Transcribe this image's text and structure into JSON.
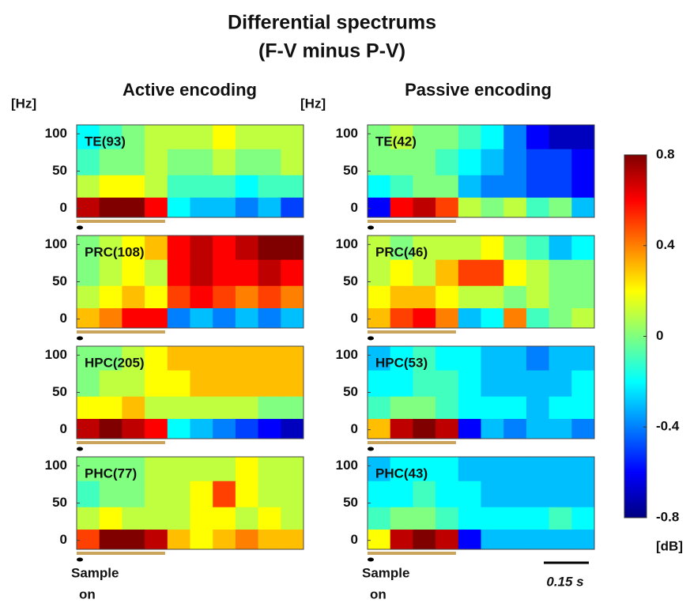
{
  "title": [
    "Differential spectrums",
    "(F-V minus P-V)"
  ],
  "columns": [
    "Active encoding",
    "Passive encoding"
  ],
  "y_unit": "[Hz]",
  "x_label": [
    "Sample",
    "on"
  ],
  "scale_bar": "0.15 s",
  "colorbar": {
    "colormap": "jet",
    "lim": [
      -0.8,
      0.8
    ],
    "ticks": [
      -0.8,
      -0.4,
      0,
      0.4,
      0.8
    ],
    "label": "[dB]"
  },
  "chart_data": [
    {
      "type": "heatmap",
      "title": "TE(93)",
      "ylim": [
        -12,
        112
      ],
      "yticks": [
        0,
        50,
        100
      ],
      "ybins": [
        -12,
        15,
        45,
        80,
        112
      ],
      "values": [
        [
          0.7,
          0.8,
          0.8,
          0.6,
          -0.2,
          -0.3,
          -0.3,
          -0.4,
          -0.3,
          -0.5
        ],
        [
          0.1,
          0.2,
          0.2,
          0.1,
          -0.1,
          -0.1,
          -0.1,
          -0.2,
          -0.1,
          -0.1
        ],
        [
          -0.1,
          0,
          0,
          0.1,
          0,
          0,
          0.1,
          0,
          0,
          0.1
        ],
        [
          -0.2,
          -0.1,
          0,
          0.1,
          0.1,
          0.1,
          0.2,
          0.1,
          0.1,
          0.1
        ]
      ]
    },
    {
      "type": "heatmap",
      "title": "TE(42)",
      "ylim": [
        -12,
        112
      ],
      "yticks": [
        0,
        50,
        100
      ],
      "ybins": [
        -12,
        15,
        45,
        80,
        112
      ],
      "values": [
        [
          -0.6,
          0.6,
          0.7,
          0.5,
          0.1,
          0,
          0.1,
          -0.1,
          0,
          -0.3
        ],
        [
          -0.2,
          -0.1,
          0,
          0,
          -0.3,
          -0.4,
          -0.4,
          -0.5,
          -0.5,
          -0.6
        ],
        [
          0,
          0,
          0,
          -0.1,
          -0.2,
          -0.3,
          -0.4,
          -0.5,
          -0.5,
          -0.6
        ],
        [
          0,
          0.1,
          0,
          0,
          -0.1,
          -0.2,
          -0.4,
          -0.6,
          -0.7,
          -0.7
        ]
      ]
    },
    {
      "type": "heatmap",
      "title": "PRC(108)",
      "ylim": [
        -12,
        112
      ],
      "yticks": [
        0,
        50,
        100
      ],
      "ybins": [
        -12,
        15,
        45,
        80,
        112
      ],
      "values": [
        [
          0.3,
          0.4,
          0.6,
          0.6,
          -0.4,
          -0.3,
          -0.4,
          -0.3,
          -0.4,
          -0.3
        ],
        [
          0.1,
          0.2,
          0.3,
          0.2,
          0.5,
          0.6,
          0.5,
          0.4,
          0.5,
          0.4
        ],
        [
          0,
          0.1,
          0.2,
          0.1,
          0.6,
          0.7,
          0.6,
          0.6,
          0.7,
          0.6
        ],
        [
          0,
          0.1,
          0.2,
          0.3,
          0.6,
          0.7,
          0.6,
          0.7,
          0.8,
          0.8
        ]
      ]
    },
    {
      "type": "heatmap",
      "title": "PRC(46)",
      "ylim": [
        -12,
        112
      ],
      "yticks": [
        0,
        50,
        100
      ],
      "ybins": [
        -12,
        15,
        45,
        80,
        112
      ],
      "values": [
        [
          0.3,
          0.5,
          0.6,
          0.4,
          -0.3,
          -0.2,
          0.4,
          -0.1,
          0,
          0.1
        ],
        [
          0.2,
          0.3,
          0.3,
          0.2,
          0.1,
          0.1,
          0,
          0.1,
          0,
          0
        ],
        [
          0.1,
          0.2,
          0.1,
          0.3,
          0.5,
          0.5,
          0.2,
          0.1,
          0,
          0
        ],
        [
          0.1,
          0,
          0.1,
          0.1,
          0.1,
          0.2,
          0,
          -0.1,
          -0.3,
          -0.2
        ]
      ]
    },
    {
      "type": "heatmap",
      "title": "HPC(205)",
      "ylim": [
        -12,
        112
      ],
      "yticks": [
        0,
        50,
        100
      ],
      "ybins": [
        -12,
        15,
        45,
        80,
        112
      ],
      "values": [
        [
          0.7,
          0.8,
          0.7,
          0.6,
          -0.2,
          -0.3,
          -0.4,
          -0.5,
          -0.6,
          -0.7
        ],
        [
          0.2,
          0.2,
          0.3,
          0.1,
          0.1,
          0.1,
          0.1,
          0.1,
          0,
          0
        ],
        [
          0,
          0.1,
          0.1,
          0.2,
          0.2,
          0.3,
          0.3,
          0.3,
          0.3,
          0.3
        ],
        [
          0,
          0,
          0.1,
          0.2,
          0.3,
          0.3,
          0.3,
          0.3,
          0.3,
          0.3
        ]
      ]
    },
    {
      "type": "heatmap",
      "title": "HPC(53)",
      "ylim": [
        -12,
        112
      ],
      "yticks": [
        0,
        50,
        100
      ],
      "ybins": [
        -12,
        15,
        45,
        80,
        112
      ],
      "values": [
        [
          0.3,
          0.7,
          0.8,
          0.7,
          -0.6,
          -0.3,
          -0.4,
          -0.3,
          -0.3,
          -0.4
        ],
        [
          -0.1,
          0,
          0,
          -0.1,
          -0.2,
          -0.2,
          -0.2,
          -0.3,
          -0.2,
          -0.2
        ],
        [
          -0.2,
          -0.2,
          -0.1,
          -0.1,
          -0.2,
          -0.3,
          -0.3,
          -0.3,
          -0.3,
          -0.2
        ],
        [
          -0.3,
          -0.2,
          -0.1,
          -0.2,
          -0.2,
          -0.3,
          -0.3,
          -0.4,
          -0.3,
          -0.3
        ]
      ]
    },
    {
      "type": "heatmap",
      "title": "PHC(77)",
      "ylim": [
        -12,
        112
      ],
      "yticks": [
        0,
        50,
        100
      ],
      "ybins": [
        -12,
        15,
        45,
        80,
        112
      ],
      "values": [
        [
          0.5,
          0.8,
          0.8,
          0.7,
          0.3,
          0.2,
          0.3,
          0.4,
          0.3,
          0.3
        ],
        [
          0.1,
          0.2,
          0.1,
          0.1,
          0.1,
          0.2,
          0.2,
          0.1,
          0.2,
          0.1
        ],
        [
          -0.1,
          0,
          0,
          0.1,
          0.1,
          0.2,
          0.5,
          0.2,
          0.1,
          0.1
        ],
        [
          0,
          0,
          0,
          0.1,
          0.1,
          0.1,
          0.1,
          0.2,
          0.1,
          0.1
        ]
      ]
    },
    {
      "type": "heatmap",
      "title": "PHC(43)",
      "ylim": [
        -12,
        112
      ],
      "yticks": [
        0,
        50,
        100
      ],
      "ybins": [
        -12,
        15,
        45,
        80,
        112
      ],
      "values": [
        [
          0.2,
          0.7,
          0.8,
          0.7,
          -0.6,
          -0.3,
          -0.3,
          -0.3,
          -0.3,
          -0.3
        ],
        [
          -0.1,
          0,
          0,
          -0.1,
          -0.2,
          -0.2,
          -0.2,
          -0.2,
          -0.1,
          -0.2
        ],
        [
          -0.2,
          -0.2,
          -0.1,
          -0.2,
          -0.2,
          -0.3,
          -0.3,
          -0.3,
          -0.3,
          -0.3
        ],
        [
          -0.3,
          -0.2,
          -0.2,
          -0.2,
          -0.3,
          -0.3,
          -0.3,
          -0.3,
          -0.3,
          -0.3
        ]
      ]
    }
  ]
}
